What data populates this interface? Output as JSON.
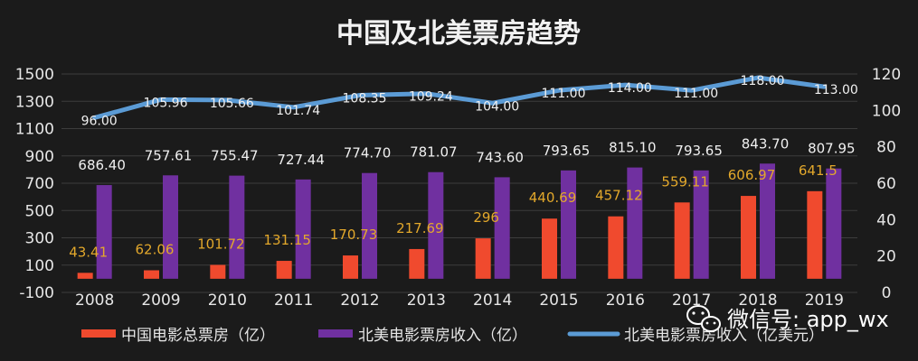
{
  "chart_data": {
    "type": "bar",
    "title": "中国及北美票房趋势",
    "categories": [
      "2008",
      "2009",
      "2010",
      "2011",
      "2012",
      "2013",
      "2014",
      "2015",
      "2016",
      "2017",
      "2018",
      "2019"
    ],
    "y_left": {
      "range": [
        -100,
        1500
      ],
      "ticks": [
        "-100",
        "100",
        "300",
        "500",
        "700",
        "900",
        "1100",
        "1300",
        "1500"
      ]
    },
    "y_right": {
      "range": [
        0,
        120
      ],
      "ticks": [
        "0",
        "20",
        "40",
        "60",
        "80",
        "100",
        "120"
      ]
    },
    "series": [
      {
        "name": "中国电影总票房（亿）",
        "type": "bar",
        "axis": "left",
        "color": "#f04a2e",
        "values": [
          43.41,
          62.06,
          101.72,
          131.15,
          170.73,
          217.69,
          296,
          440.69,
          457.12,
          559.11,
          606.97,
          641.5
        ],
        "labels": [
          "43.41",
          "62.06",
          "101.72",
          "131.15",
          "170.73",
          "217.69",
          "296",
          "440.69",
          "457.12",
          "559.11",
          "606.97",
          "641.5"
        ]
      },
      {
        "name": "北美电影票房收入（亿）",
        "type": "bar",
        "axis": "left",
        "color": "#7030a0",
        "values": [
          686.4,
          757.61,
          755.47,
          727.44,
          774.7,
          781.07,
          743.6,
          793.65,
          815.1,
          793.65,
          843.7,
          807.95
        ],
        "labels": [
          "686.40",
          "757.61",
          "755.47",
          "727.44",
          "774.70",
          "781.07",
          "743.60",
          "793.65",
          "815.10",
          "793.65",
          "843.70",
          "807.95"
        ]
      },
      {
        "name": "北美电影票房收入（亿美元）",
        "type": "line",
        "axis": "right",
        "color": "#5b9bd5",
        "values": [
          96.0,
          105.96,
          105.66,
          101.74,
          108.35,
          109.24,
          104.0,
          111.0,
          114.0,
          111.0,
          118.0,
          113.0
        ],
        "labels": [
          "96.00",
          "105.96",
          "105.66",
          "101.74",
          "108.35",
          "109.24",
          "104.00",
          "111.00",
          "114.00",
          "111.00",
          "118.00",
          "113.00"
        ]
      }
    ]
  },
  "watermark": {
    "text": "微信号: app_wx",
    "icon": "wechat-icon"
  }
}
